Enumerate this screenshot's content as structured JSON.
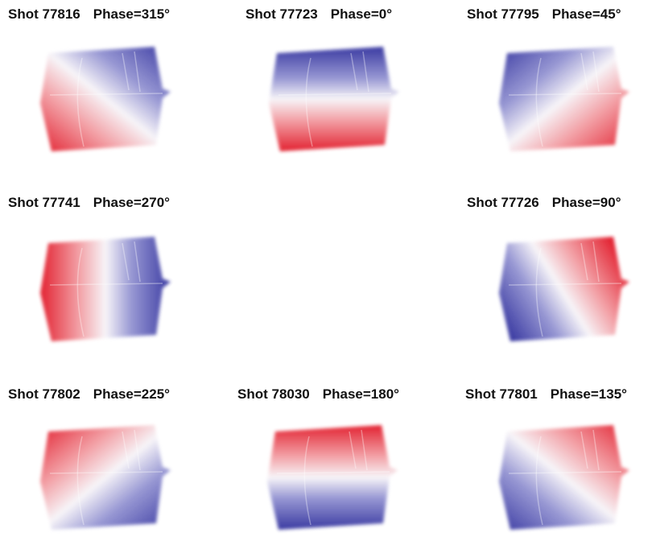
{
  "panels": [
    {
      "shot": "Shot 77816",
      "phase": "Phase=315°"
    },
    {
      "shot": "Shot 77723",
      "phase": "Phase=0°"
    },
    {
      "shot": "Shot 77795",
      "phase": "Phase=45°"
    },
    {
      "shot": "Shot 77741",
      "phase": "Phase=270°"
    },
    {
      "shot": "Shot 77726",
      "phase": "Phase=90°"
    },
    {
      "shot": "Shot 77802",
      "phase": "Phase=225°"
    },
    {
      "shot": "Shot 78030",
      "phase": "Phase=180°"
    },
    {
      "shot": "Shot 77801",
      "phase": "Phase=135°"
    }
  ]
}
